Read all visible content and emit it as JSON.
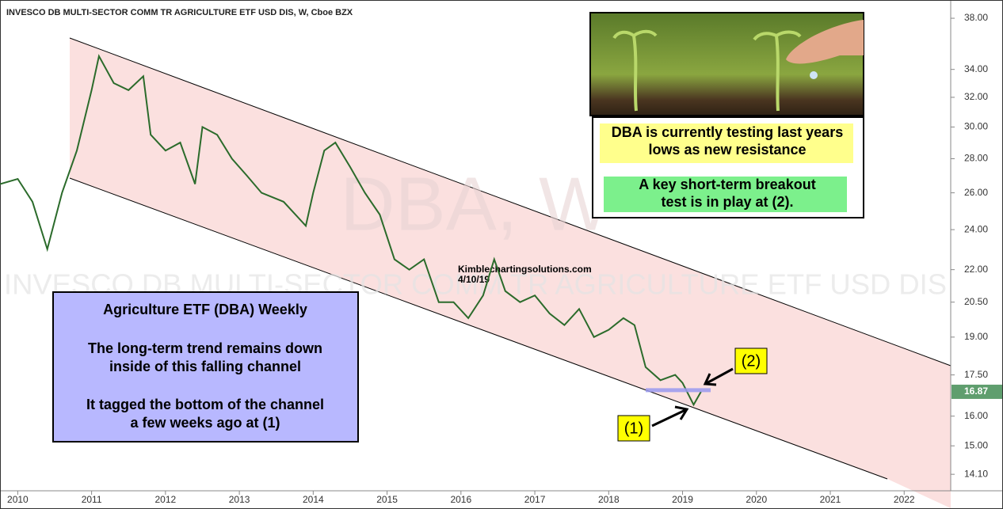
{
  "chart_data": {
    "type": "line",
    "title": "INVESCO DB MULTI-SECTOR COMM TR AGRICULTURE ETF USD DIS, W, Cboe BZX",
    "watermark_symbol": "DBA, W",
    "watermark_name": "INVESCO DB MULTI-SECTOR COMM TR AGRICULTURE ETF USD DIS",
    "x": [
      2009.76,
      2010.0,
      2010.2,
      2010.4,
      2010.6,
      2010.8,
      2011.0,
      2011.1,
      2011.3,
      2011.5,
      2011.7,
      2011.8,
      2012.0,
      2012.2,
      2012.4,
      2012.5,
      2012.7,
      2012.9,
      2013.1,
      2013.3,
      2013.6,
      2013.9,
      2014.0,
      2014.15,
      2014.3,
      2014.5,
      2014.7,
      2014.9,
      2015.1,
      2015.3,
      2015.5,
      2015.7,
      2015.9,
      2016.1,
      2016.3,
      2016.45,
      2016.6,
      2016.8,
      2017.0,
      2017.2,
      2017.4,
      2017.6,
      2017.8,
      2018.0,
      2018.2,
      2018.35,
      2018.5,
      2018.7,
      2018.9,
      2019.0,
      2019.15,
      2019.25
    ],
    "values": [
      26.5,
      26.8,
      25.5,
      23.0,
      26.0,
      28.5,
      32.5,
      35.0,
      33.0,
      32.5,
      33.5,
      29.5,
      28.5,
      29.0,
      26.5,
      30.0,
      29.5,
      28.0,
      27.0,
      26.0,
      25.5,
      24.2,
      26.0,
      28.5,
      29.0,
      27.5,
      26.0,
      24.8,
      22.5,
      22.0,
      22.5,
      20.5,
      20.5,
      19.8,
      20.8,
      22.5,
      21.0,
      20.5,
      20.8,
      20.0,
      19.5,
      20.2,
      19.0,
      19.3,
      19.8,
      19.5,
      17.8,
      17.3,
      17.5,
      17.2,
      16.4,
      16.87
    ],
    "color": "#2b6b2b",
    "log_scale": true,
    "xlim": [
      2009.76,
      2022.63
    ],
    "xticks": [
      2010,
      2011,
      2012,
      2013,
      2014,
      2015,
      2016,
      2017,
      2018,
      2019,
      2020,
      2021,
      2022
    ],
    "ylim": [
      13.65,
      39.2
    ],
    "yticks": [
      {
        "value": 14.1,
        "label": "14.10"
      },
      {
        "value": 15,
        "label": "15.00"
      },
      {
        "value": 16,
        "label": "16.00"
      },
      {
        "value": 17.5,
        "label": "17.50"
      },
      {
        "value": 19,
        "label": "19.00"
      },
      {
        "value": 20.5,
        "label": "20.50"
      },
      {
        "value": 22,
        "label": "22.00"
      },
      {
        "value": 24,
        "label": "24.00"
      },
      {
        "value": 26,
        "label": "26.00"
      },
      {
        "value": 28,
        "label": "28.00"
      },
      {
        "value": 30,
        "label": "30.00"
      },
      {
        "value": 32,
        "label": "32.00"
      },
      {
        "value": 34,
        "label": "34.00"
      },
      {
        "value": 38,
        "label": "38.00"
      }
    ],
    "last_price": 16.87,
    "resistance": 16.93,
    "source": "Kimblechartingsolutions.com",
    "date": "4/10/19",
    "left_box": [
      "Agriculture ETF (DBA) Weekly",
      "The long-term trend remains down",
      "inside of this falling channel",
      "It tagged the bottom of the channel",
      "a few weeks ago at (1)"
    ],
    "yellow_note": [
      "DBA is currently testing last years",
      "lows as new resistance"
    ],
    "green_note": [
      "A key short-term breakout",
      "test is in play at (2)."
    ],
    "marker_1": "(1)",
    "marker_2": "(2)"
  }
}
